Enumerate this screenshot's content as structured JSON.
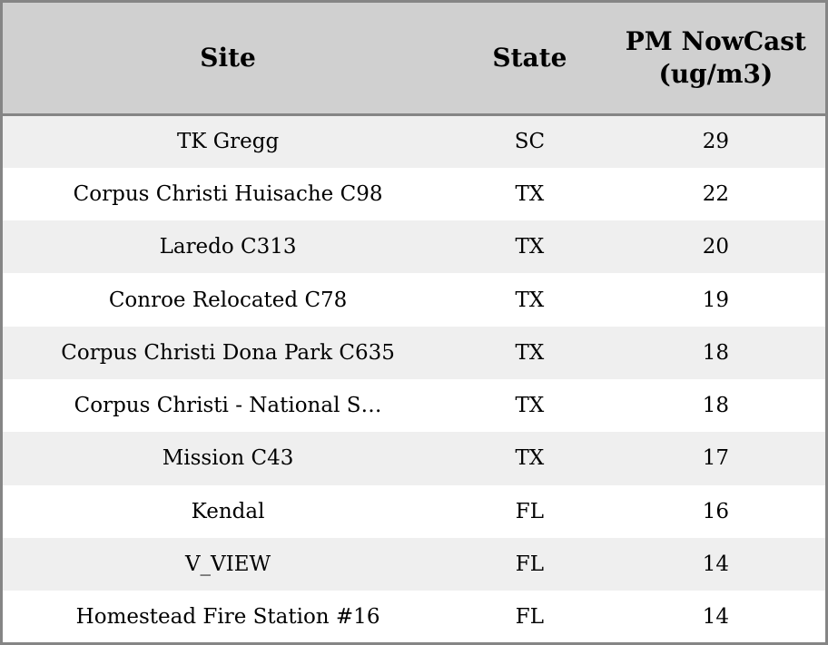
{
  "table": {
    "columns": [
      {
        "key": "site",
        "label": "Site"
      },
      {
        "key": "state",
        "label": "State"
      },
      {
        "key": "pm_nowcast",
        "label": "PM NowCast (ug/m3)"
      }
    ],
    "rows": [
      {
        "site": "TK Gregg",
        "state": "SC",
        "pm_nowcast": "29"
      },
      {
        "site": "Corpus Christi Huisache C98",
        "state": "TX",
        "pm_nowcast": "22"
      },
      {
        "site": "Laredo C313",
        "state": "TX",
        "pm_nowcast": "20"
      },
      {
        "site": "Conroe Relocated C78",
        "state": "TX",
        "pm_nowcast": "19"
      },
      {
        "site": "Corpus Christi Dona Park C635",
        "state": "TX",
        "pm_nowcast": "18"
      },
      {
        "site": "Corpus Christi - National S…",
        "state": "TX",
        "pm_nowcast": "18"
      },
      {
        "site": "Mission C43",
        "state": "TX",
        "pm_nowcast": "17"
      },
      {
        "site": "Kendal",
        "state": "FL",
        "pm_nowcast": "16"
      },
      {
        "site": "V_VIEW",
        "state": "FL",
        "pm_nowcast": "14"
      },
      {
        "site": "Homestead Fire Station #16",
        "state": "FL",
        "pm_nowcast": "14"
      }
    ]
  },
  "colors": {
    "header_bg": "#d0d0d0",
    "row_alt_bg": "#efefef",
    "row_bg": "#ffffff",
    "border": "#858585",
    "text": "#000000"
  }
}
